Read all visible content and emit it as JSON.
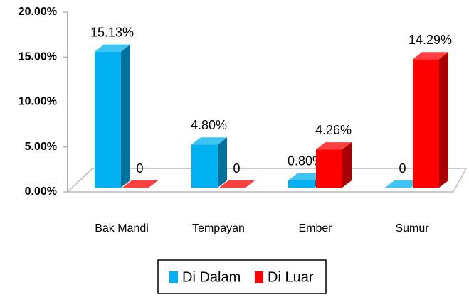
{
  "chart_data": {
    "type": "bar3d",
    "categories": [
      "Bak Mandi",
      "Tempayan",
      "Ember",
      "Sumur"
    ],
    "series": [
      {
        "name": "Di Dalam",
        "color": "#00b0f0",
        "values": [
          15.13,
          4.8,
          0.8,
          0
        ],
        "value_labels": [
          "15.13%",
          "4.80%",
          "0.80%",
          "0"
        ]
      },
      {
        "name": "Di Luar",
        "color": "#ff0000",
        "values": [
          0,
          0,
          4.26,
          14.29
        ],
        "value_labels": [
          "0",
          "0",
          "4.26%",
          "14.29%"
        ]
      }
    ],
    "ylim": [
      0,
      20
    ],
    "yticks": [
      {
        "value": 0,
        "label": "0.00%"
      },
      {
        "value": 5,
        "label": "5.00%"
      },
      {
        "value": 10,
        "label": "10.00%"
      },
      {
        "value": 15,
        "label": "15.00%"
      },
      {
        "value": 20,
        "label": "20.00%"
      }
    ],
    "legend": "bottom"
  }
}
